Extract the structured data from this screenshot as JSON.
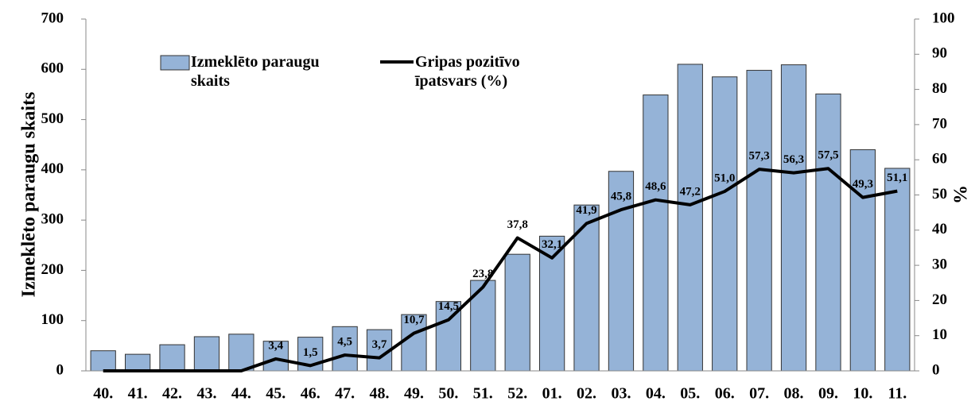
{
  "chart_data": {
    "type": "bar_line",
    "categories": [
      "40.",
      "41.",
      "42.",
      "43.",
      "44.",
      "45.",
      "46.",
      "47.",
      "48.",
      "49.",
      "50.",
      "51.",
      "52.",
      "01.",
      "02.",
      "03.",
      "04.",
      "05.",
      "06.",
      "07.",
      "08.",
      "09.",
      "10.",
      "11."
    ],
    "series": [
      {
        "name": "Izmeklēto paraugu skaits",
        "type": "bar",
        "color": "#95b3d7",
        "values": [
          40,
          33,
          52,
          68,
          73,
          59,
          67,
          88,
          82,
          112,
          138,
          180,
          232,
          268,
          330,
          397,
          549,
          610,
          585,
          598,
          609,
          551,
          440,
          403
        ]
      },
      {
        "name": "Gripas pozitīvo īpatsvars (%)",
        "type": "line",
        "color": "#000000",
        "axis": "y2",
        "values": [
          0,
          0,
          0,
          0,
          0,
          3.4,
          1.5,
          4.5,
          3.7,
          10.7,
          14.5,
          23.8,
          37.8,
          32.1,
          41.9,
          45.8,
          48.6,
          47.2,
          51.0,
          57.3,
          56.3,
          57.5,
          49.3,
          51.1
        ],
        "value_labels": [
          null,
          null,
          null,
          null,
          null,
          "3,4",
          "1,5",
          "4,5",
          "3,7",
          "10,7",
          "14,5",
          "23,8",
          "37,8",
          "32,1",
          "41,9",
          "45,8",
          "48,6",
          "47,2",
          "51,0",
          "57,3",
          "56,3",
          "57,5",
          "49,3",
          "51,1"
        ]
      }
    ],
    "ylabel": "Izmeklēto paraugu skaits",
    "y2label": "%",
    "ylim": [
      0,
      700
    ],
    "yticks": [
      0,
      100,
      200,
      300,
      400,
      500,
      600,
      700
    ],
    "y2lim": [
      0,
      100
    ],
    "y2ticks": [
      0,
      10,
      20,
      30,
      40,
      50,
      60,
      70,
      80,
      90,
      100
    ],
    "grid": false
  }
}
